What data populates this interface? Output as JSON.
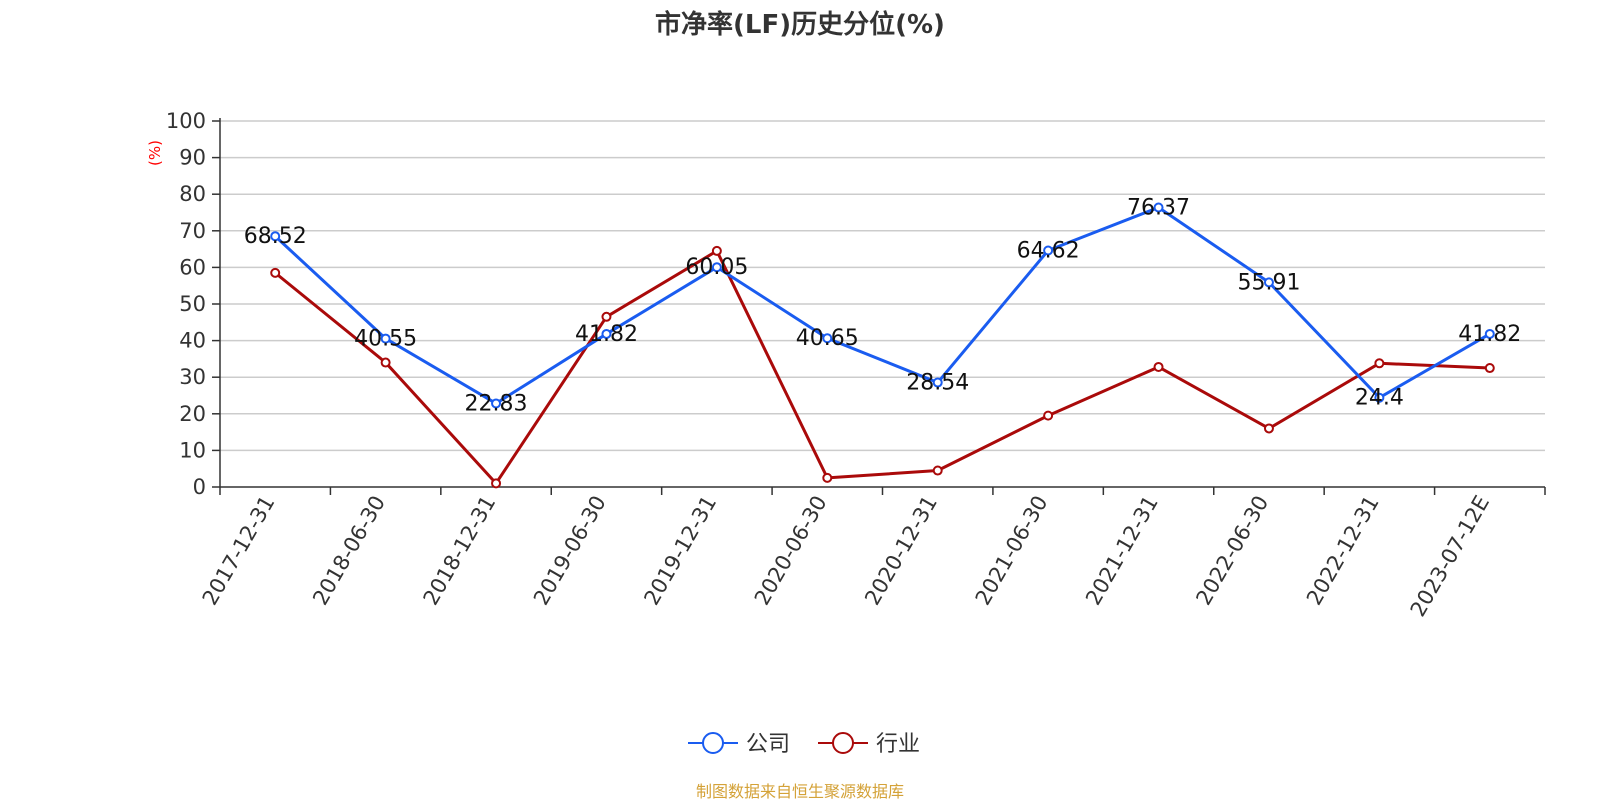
{
  "source_note": "制图数据来自恒生聚源数据库",
  "chart_data": {
    "type": "line",
    "title": "市净率(LF)历史分位(%)",
    "xlabel": "",
    "ylabel": "(%)",
    "ylim": [
      0,
      100
    ],
    "yticks": [
      0,
      10,
      20,
      30,
      40,
      50,
      60,
      70,
      80,
      90,
      100
    ],
    "grid": true,
    "legend_position": "bottom-center",
    "categories": [
      "2017-12-31",
      "2018-06-30",
      "2018-12-31",
      "2019-06-30",
      "2019-12-31",
      "2020-06-30",
      "2020-12-31",
      "2021-06-30",
      "2021-12-31",
      "2022-06-30",
      "2022-12-31",
      "2023-07-12E"
    ],
    "series": [
      {
        "name": "公司",
        "color": "#1a5cf0",
        "show_labels": true,
        "values": [
          68.52,
          40.55,
          22.83,
          41.82,
          60.05,
          40.65,
          28.54,
          64.62,
          76.37,
          55.91,
          24.4,
          41.82
        ],
        "labels": [
          "68.52",
          "40.55",
          "22.83",
          "41.82",
          "60.05",
          "40.65",
          "28.54",
          "64.62",
          "76.37",
          "55.91",
          "24.4",
          "41.82"
        ]
      },
      {
        "name": "行业",
        "color": "#aa0a0a",
        "show_labels": false,
        "values": [
          58.5,
          34.0,
          1.0,
          46.5,
          64.5,
          2.5,
          4.5,
          19.5,
          32.8,
          16.0,
          33.8,
          32.5
        ]
      }
    ]
  }
}
